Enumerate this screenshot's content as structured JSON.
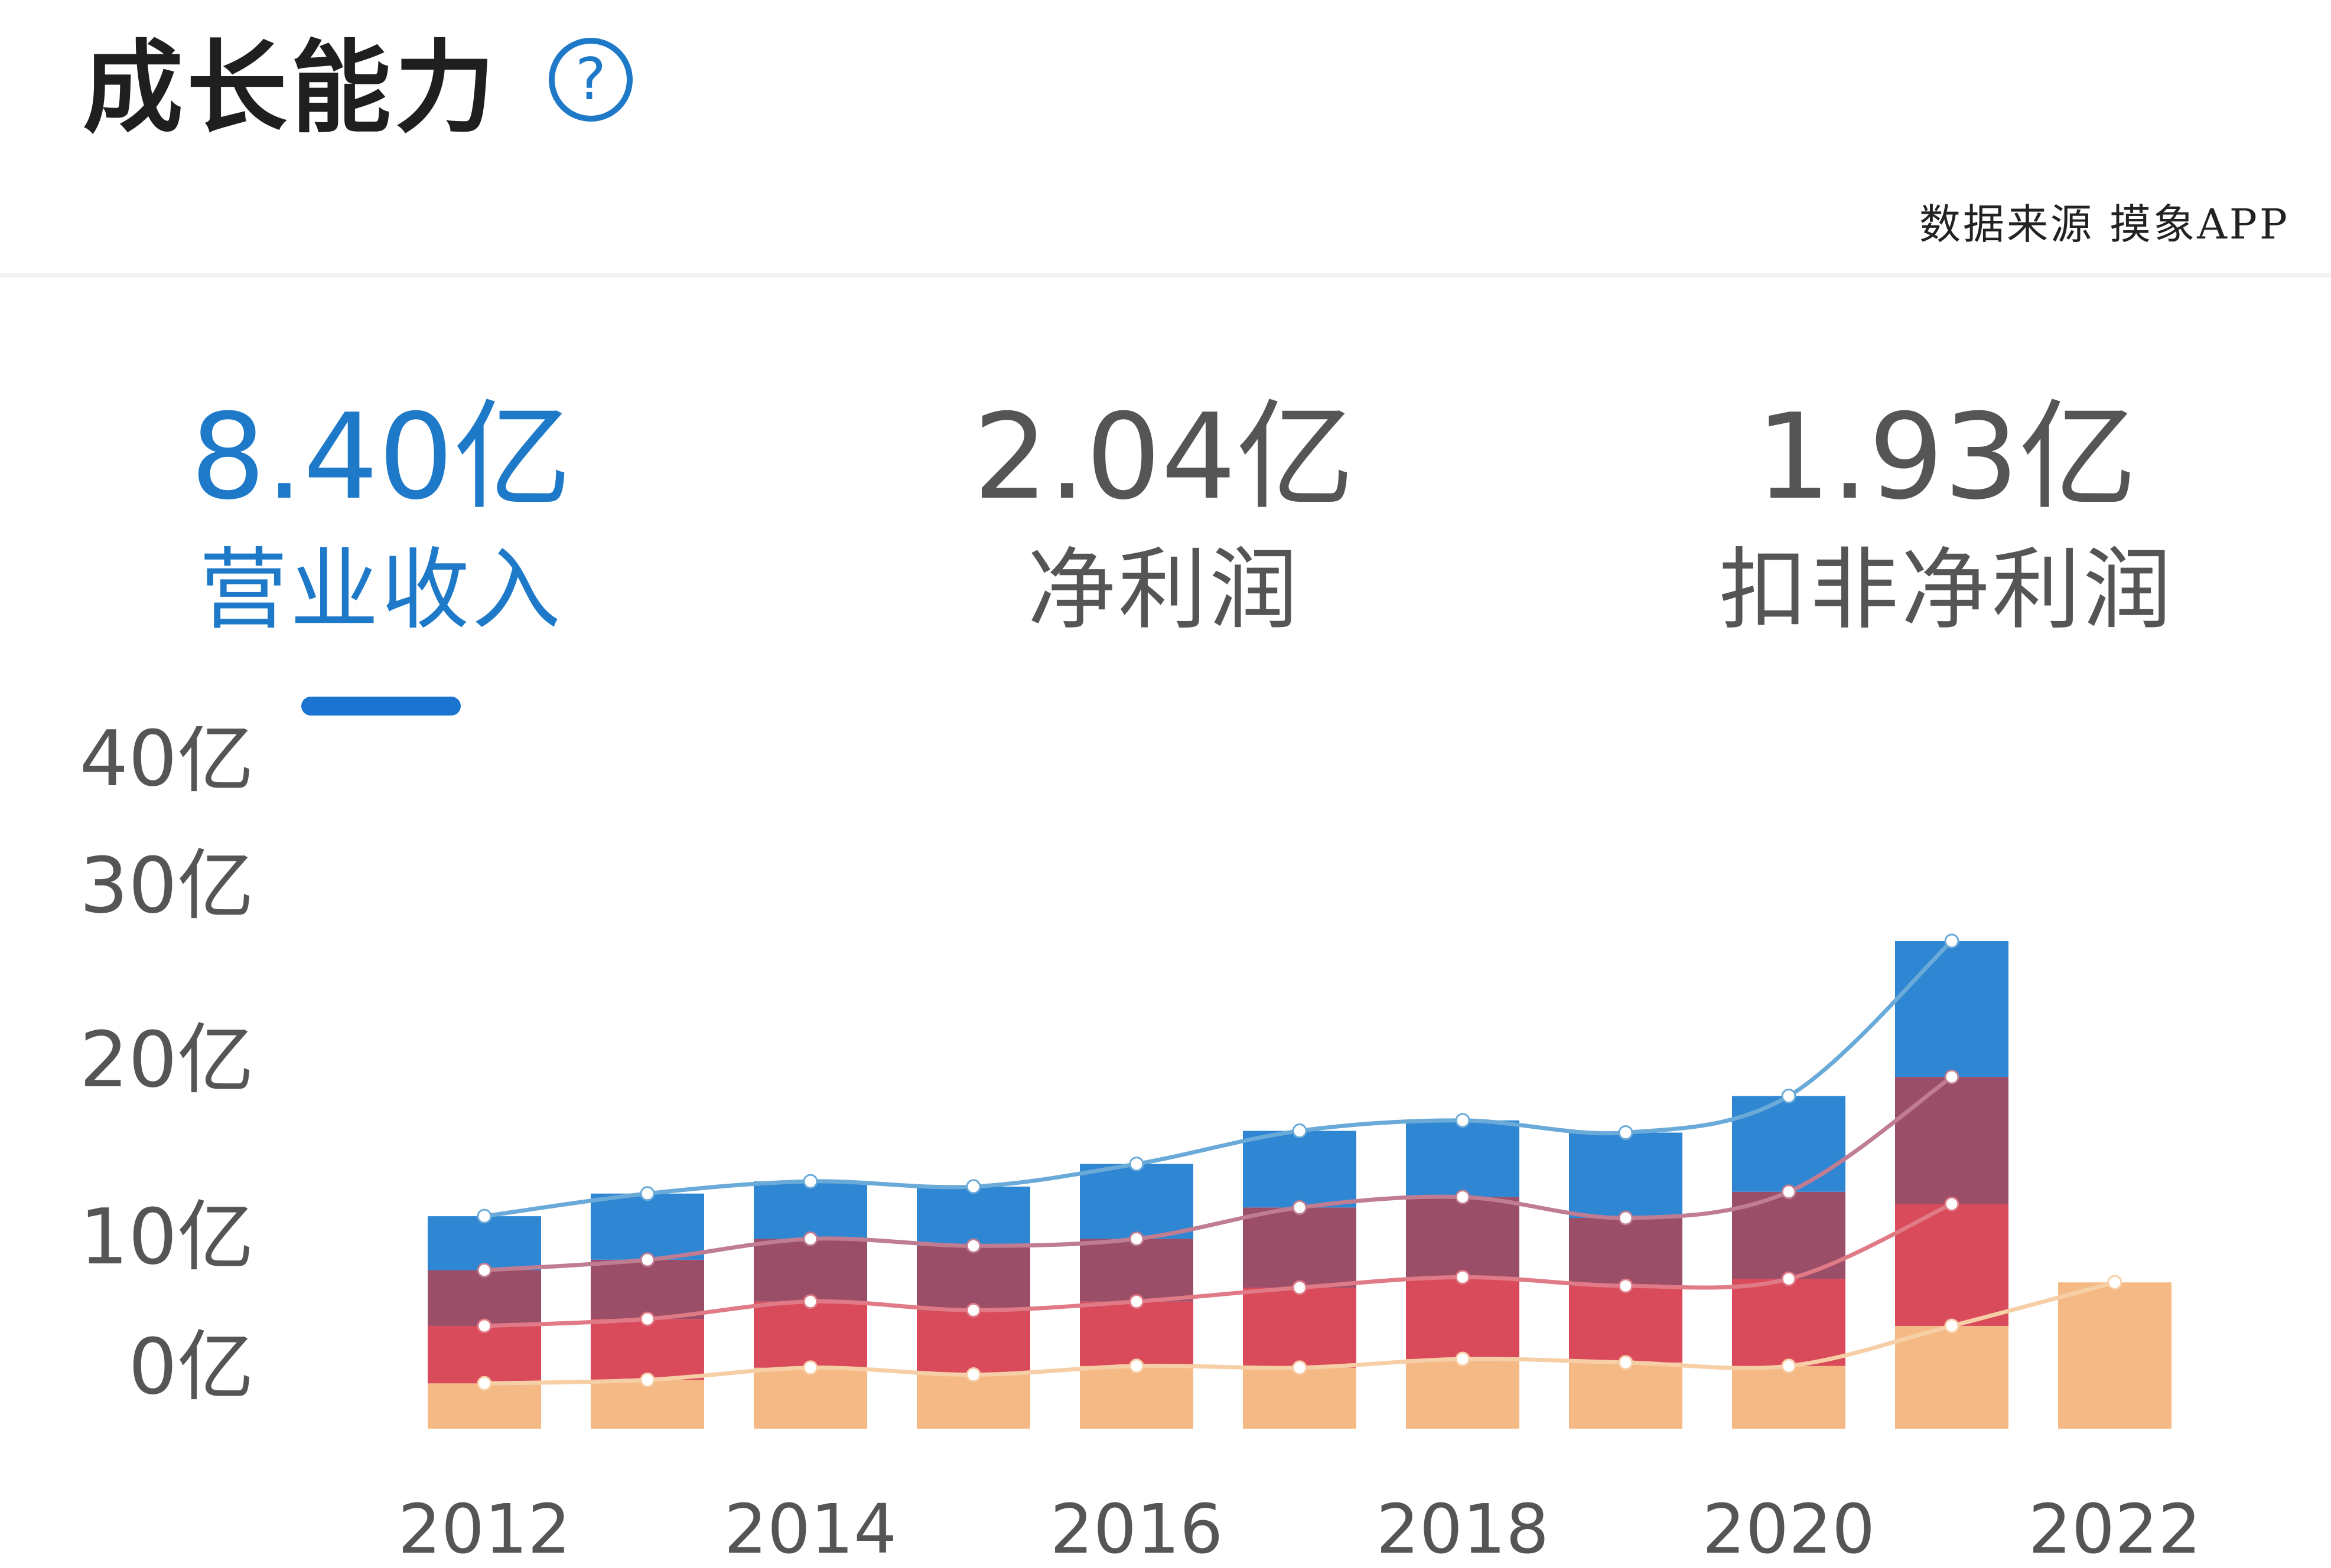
{
  "header": {
    "title": "成长能力",
    "source": "数据来源 摸象APP"
  },
  "metrics": [
    {
      "value": "8.40亿",
      "label": "营业收入"
    },
    {
      "value": "2.04亿",
      "label": "净利润"
    },
    {
      "value": "1.93亿",
      "label": "扣非净利润"
    }
  ],
  "colors": {
    "blue": "#2f86d2",
    "purple": "#9b4e67",
    "red": "#d94a5a",
    "orange": "#f5b986",
    "line_blue": "#6aaad8",
    "line_purple": "#c07d92",
    "line_red": "#e07a86",
    "line_orange": "#f7cfa6",
    "accent": "#1e7ac9"
  },
  "chart_data": {
    "type": "bar",
    "stacked": true,
    "categories": [
      "2012",
      "2013",
      "2014",
      "2015",
      "2016",
      "2017",
      "2018",
      "2019",
      "2020",
      "2021",
      "2022"
    ],
    "x_tick_labels": [
      "2012",
      "2014",
      "2016",
      "2018",
      "2020",
      "2022"
    ],
    "y_tick_labels": [
      "0亿",
      "10亿",
      "20亿",
      "30亿",
      "40亿"
    ],
    "ylim": [
      0,
      40
    ],
    "series": [
      {
        "color": "orange",
        "values": [
          2.6,
          2.8,
          3.5,
          3.1,
          3.6,
          3.5,
          4.0,
          3.8,
          3.6,
          5.9,
          8.4
        ]
      },
      {
        "color": "red",
        "values": [
          3.3,
          3.5,
          3.8,
          3.7,
          3.7,
          4.6,
          4.7,
          4.4,
          5.0,
          7.0,
          0
        ]
      },
      {
        "color": "purple",
        "values": [
          3.2,
          3.4,
          3.6,
          3.7,
          3.6,
          4.6,
          4.6,
          3.9,
          5.0,
          7.3,
          0
        ]
      },
      {
        "color": "blue",
        "values": [
          3.1,
          3.8,
          3.3,
          3.4,
          4.3,
          4.4,
          4.4,
          4.9,
          5.5,
          7.8,
          0
        ]
      }
    ]
  }
}
